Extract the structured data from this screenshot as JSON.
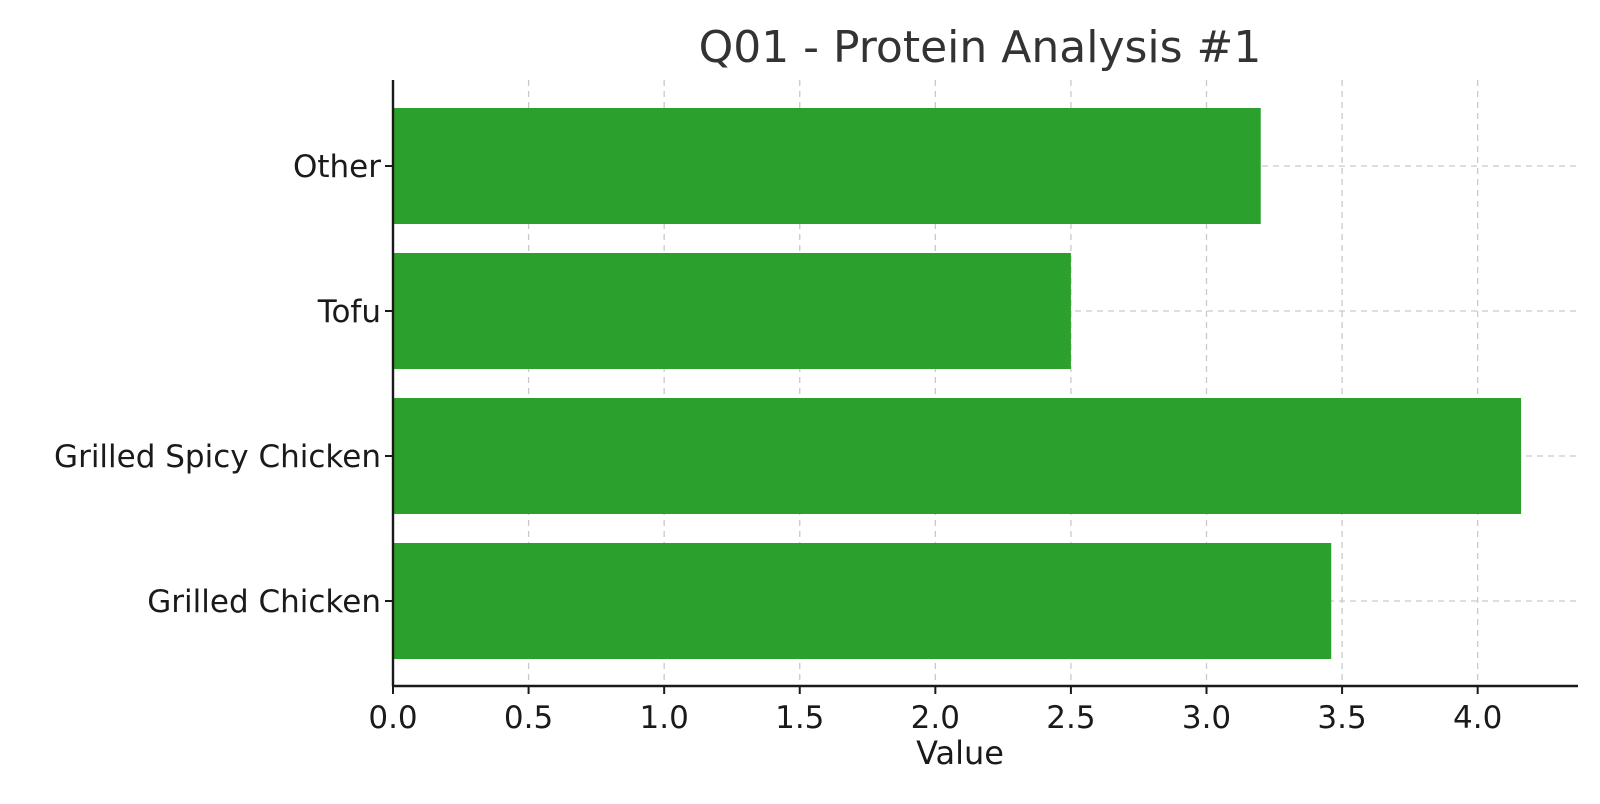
{
  "chart_data": {
    "type": "bar",
    "orientation": "horizontal",
    "title": "Q01 - Protein Analysis #1",
    "xlabel": "Value",
    "ylabel": "",
    "categories": [
      "Grilled Chicken",
      "Grilled Spicy Chicken",
      "Tofu",
      "Other"
    ],
    "values": [
      3.46,
      4.16,
      2.5,
      3.2
    ],
    "xlim": [
      0,
      4.37
    ],
    "xticks": [
      "0.0",
      "0.5",
      "1.0",
      "1.5",
      "2.0",
      "2.5",
      "3.0",
      "3.5",
      "4.0"
    ],
    "grid": true,
    "legend": "none",
    "bar_color": "#2ca02c"
  }
}
